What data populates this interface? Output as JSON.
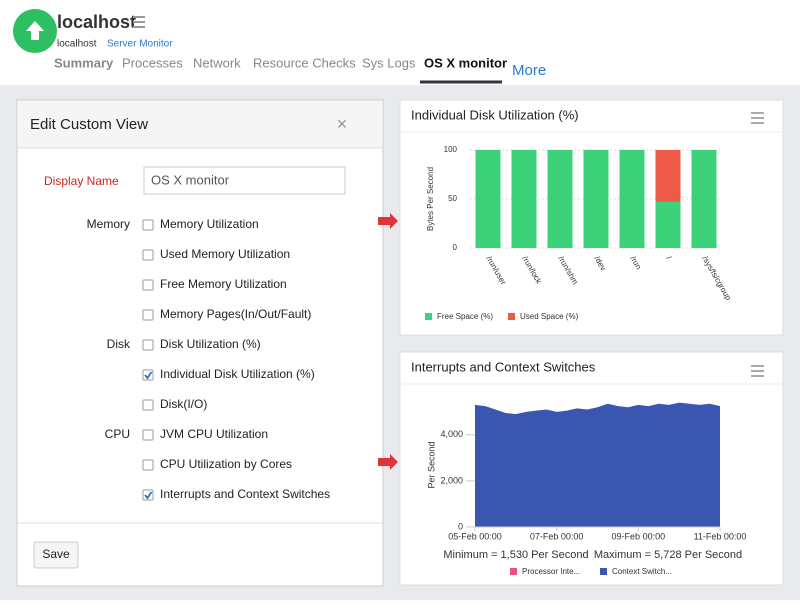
{
  "header": {
    "host": "localhost",
    "breadcrumb": [
      "localhost",
      "Server Monitor"
    ],
    "tabs": [
      "Summary",
      "Processes",
      "Network",
      "Resource Checks",
      "Sys Logs",
      "OS X monitor"
    ],
    "more": "More"
  },
  "dialog": {
    "title": "Edit Custom View",
    "close": "×",
    "display_name_label": "Display Name",
    "display_name_value": "OS X monitor",
    "groups": [
      {
        "label": "Memory",
        "options": [
          {
            "label": "Memory Utilization",
            "checked": false
          },
          {
            "label": "Used Memory Utilization",
            "checked": false
          },
          {
            "label": "Free Memory Utilization",
            "checked": false
          },
          {
            "label": "Memory Pages(In/Out/Fault)",
            "checked": false
          }
        ]
      },
      {
        "label": "Disk",
        "options": [
          {
            "label": "Disk Utilization (%)",
            "checked": false
          },
          {
            "label": "Individual Disk Utilization (%)",
            "checked": true
          },
          {
            "label": "Disk(I/O)",
            "checked": false
          }
        ]
      },
      {
        "label": "CPU",
        "options": [
          {
            "label": "JVM CPU Utilization",
            "checked": false
          },
          {
            "label": "CPU Utilization by Cores",
            "checked": false
          },
          {
            "label": "Interrupts and Context Switches",
            "checked": true
          }
        ]
      }
    ],
    "save": "Save"
  },
  "chart_data": [
    {
      "type": "bar",
      "stacked": true,
      "title": "Individual Disk Utilization (%)",
      "y_label": "Bytes Per Second",
      "categories": [
        "/run/user",
        "/run/lock",
        "/run/shm",
        "/dev",
        "/run",
        "/",
        "/sys/fs/cgroup"
      ],
      "series": [
        {
          "name": "Free Space (%)",
          "color": "#3dd17a",
          "values": [
            100,
            100,
            100,
            100,
            100,
            47,
            100
          ]
        },
        {
          "name": "Used Space (%)",
          "color": "#ec5a47",
          "values": [
            0,
            0,
            0,
            0,
            0,
            53,
            0
          ]
        }
      ],
      "ylim": [
        0,
        100
      ],
      "yticks": [
        0,
        50,
        100
      ],
      "grid": true
    },
    {
      "type": "area",
      "title": "Interrupts and Context Switches",
      "y_label": "Per Second",
      "x": [
        0,
        0.25,
        0.5,
        0.75,
        1,
        1.25,
        1.5,
        1.75,
        2,
        2.25,
        2.5,
        2.75,
        3,
        3.25,
        3.5,
        3.75,
        4,
        4.25,
        4.5,
        4.75,
        5,
        5.25,
        5.5,
        5.75,
        6
      ],
      "xlim": [
        0,
        6
      ],
      "xticks": [
        {
          "value": 0,
          "label": "05-Feb 00:00"
        },
        {
          "value": 2,
          "label": "07-Feb 00:00"
        },
        {
          "value": 4,
          "label": "09-Feb 00:00"
        },
        {
          "value": 6,
          "label": "11-Feb 00:00"
        }
      ],
      "series": [
        {
          "name": "Processor Inte...",
          "color": "#ea4f8e"
        },
        {
          "name": "Context Switch...",
          "color": "#3a56b0",
          "values": [
            5300,
            5250,
            5100,
            4950,
            4900,
            5000,
            5050,
            5100,
            5000,
            5050,
            5150,
            5100,
            5200,
            5350,
            5250,
            5200,
            5300,
            5250,
            5350,
            5300,
            5400,
            5350,
            5300,
            5350,
            5250
          ]
        }
      ],
      "ylim": [
        0,
        5600
      ],
      "yticks": [
        0,
        {
          "value": 2000,
          "label": "2,000"
        },
        {
          "value": 4000,
          "label": "4,000"
        }
      ],
      "notes": [
        "Minimum = 1,530 Per Second",
        "Maximum = 5,728 Per Second"
      ]
    }
  ]
}
